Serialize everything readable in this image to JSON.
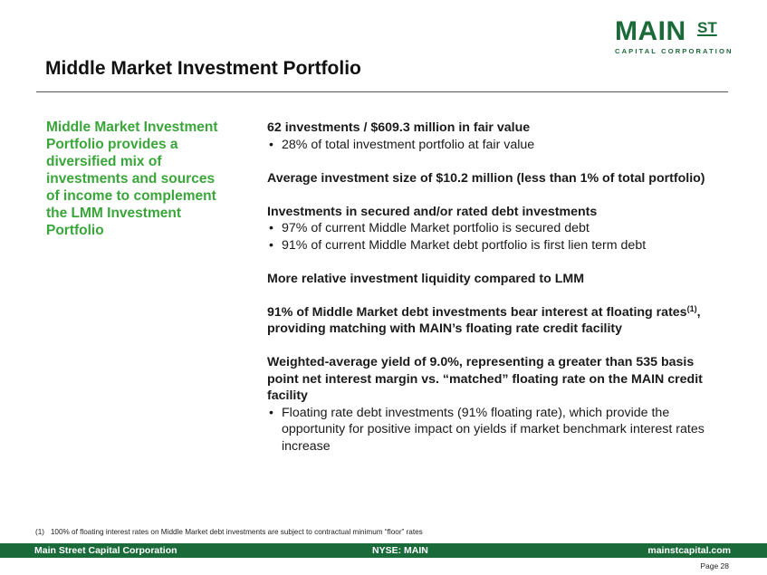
{
  "logo": {
    "main": "MAIN",
    "st": "ST",
    "sub": "CAPITAL CORPORATION",
    "color": "#1b6b3a"
  },
  "title": "Middle Market Investment Portfolio",
  "sidebar_text": "Middle Market Investment Portfolio provides a diversified mix of investments and sources of income to complement the LMM Investment Portfolio",
  "blocks": [
    {
      "head": "62 investments / $609.3 million in fair value",
      "bullets": [
        "28% of total investment portfolio at fair value"
      ]
    },
    {
      "head": "Average investment size of $10.2 million (less than 1% of total portfolio)",
      "bullets": []
    },
    {
      "head": "Investments in secured and/or rated debt investments",
      "bullets": [
        "97% of current Middle Market portfolio is secured debt",
        "91% of current Middle Market debt portfolio is first lien term debt"
      ]
    },
    {
      "head": "More relative investment liquidity compared to LMM",
      "bullets": []
    },
    {
      "head_pre": "91% of Middle Market debt investments bear interest at floating rates",
      "head_sup": "(1)",
      "head_post": ", providing matching with MAIN’s floating rate credit facility",
      "bullets": []
    },
    {
      "head": "Weighted-average yield of 9.0%, representing a greater than 535 basis point net interest margin vs. “matched” floating rate on the MAIN credit facility",
      "bullets": [
        "Floating rate debt investments (91% floating rate), which provide the opportunity for positive impact on yields if market benchmark interest rates increase"
      ]
    }
  ],
  "footnote": "(1)   100% of floating interest rates on Middle Market debt investments are subject to contractual minimum “floor” rates",
  "footer": {
    "left": "Main Street Capital Corporation",
    "center": "NYSE: MAIN",
    "right": "mainstcapital.com"
  },
  "page_label": "Page  28"
}
